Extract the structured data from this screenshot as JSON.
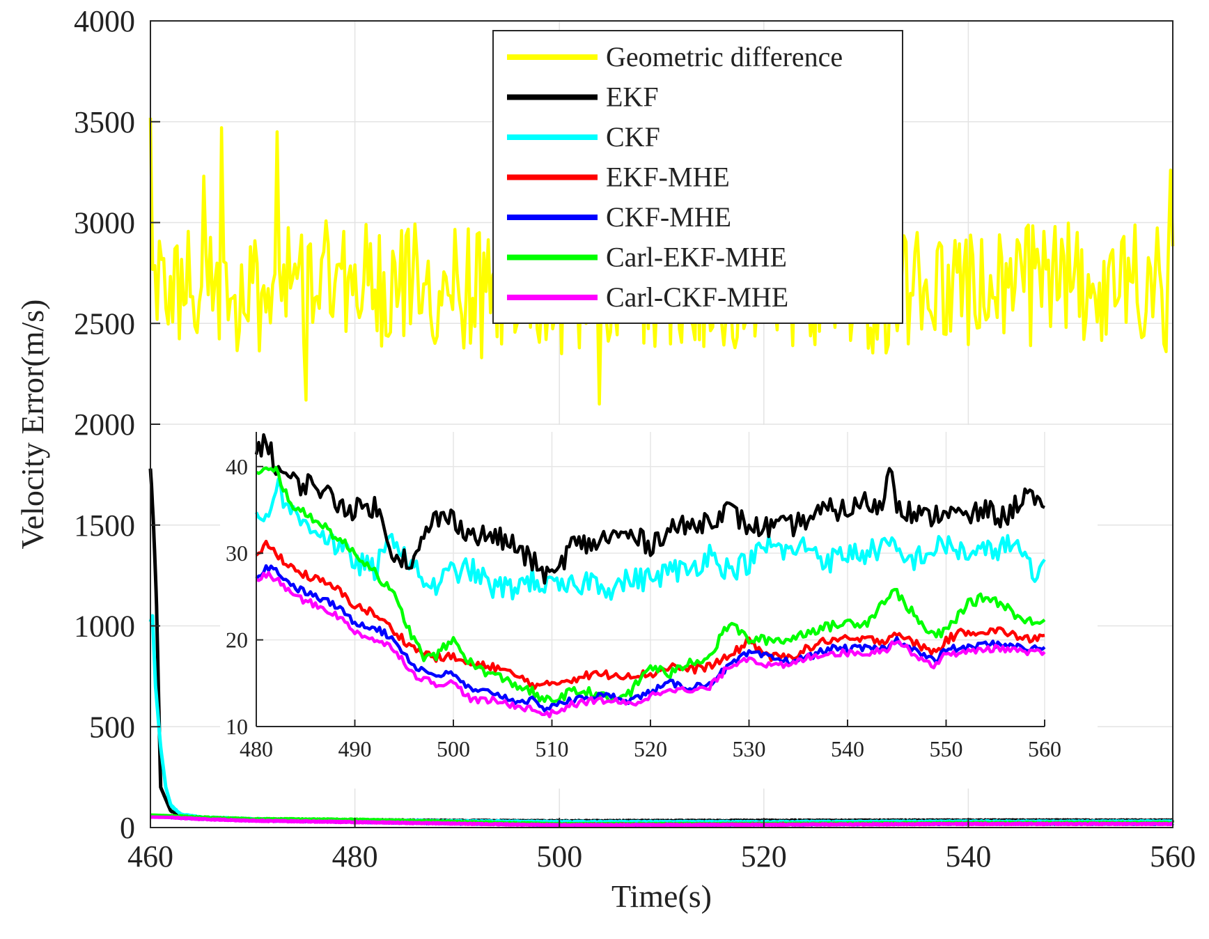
{
  "chart_data": [
    {
      "id": "main",
      "type": "line",
      "title": "",
      "xlabel": "Time(s)",
      "ylabel": "Velocity Error(m/s)",
      "xlim": [
        460,
        560
      ],
      "ylim": [
        0,
        4000
      ],
      "xticks": [
        460,
        480,
        500,
        520,
        540,
        560
      ],
      "yticks": [
        0,
        500,
        1000,
        1500,
        2000,
        2500,
        3000,
        3500,
        4000
      ],
      "grid": true,
      "legend_position": "top-center",
      "series": [
        {
          "name": "Geometric difference",
          "color": "#ffff00",
          "mean": 2680,
          "amplitude": 330,
          "peaks": [
            [
              460.1,
              3520
            ],
            [
              460.6,
              2520
            ],
            [
              465.2,
              3230
            ],
            [
              466.9,
              3470
            ],
            [
              472.5,
              3450
            ],
            [
              475.3,
              2120
            ],
            [
              492.5,
              2330
            ],
            [
              500.3,
              2350
            ],
            [
              503.9,
              2100
            ],
            [
              522.8,
              2390
            ],
            [
              527.0,
              2480
            ],
            [
              559.8,
              3260
            ],
            [
              559.4,
              2360
            ]
          ]
        },
        {
          "name": "EKF",
          "color": "#000000",
          "x": [
            460.0,
            460.1,
            460.3,
            460.5,
            460.6,
            461.0,
            462.0,
            464.0,
            470.0,
            480.0,
            500.0,
            520.0,
            540.0,
            560.0
          ],
          "y": [
            1780,
            1700,
            1500,
            1250,
            1100,
            200,
            80,
            50,
            40,
            36,
            32,
            34,
            35,
            35
          ]
        },
        {
          "name": "CKF",
          "color": "#00ffff",
          "x": [
            460.0,
            460.2,
            460.5,
            461.0,
            461.5,
            462.0,
            463.0,
            465.0,
            470.0,
            480.0,
            500.0,
            520.0,
            540.0,
            560.0
          ],
          "y": [
            1020,
            1050,
            700,
            400,
            200,
            110,
            65,
            50,
            42,
            35,
            28,
            28,
            30,
            30
          ]
        },
        {
          "name": "EKF-MHE",
          "color": "#ff0000",
          "x": [
            460,
            462,
            465,
            470,
            480,
            500,
            520,
            540,
            560
          ],
          "y": [
            55,
            52,
            45,
            38,
            30,
            16,
            18,
            20,
            21
          ]
        },
        {
          "name": "CKF-MHE",
          "color": "#0000ff",
          "x": [
            460,
            462,
            465,
            470,
            480,
            500,
            520,
            540,
            560
          ],
          "y": [
            55,
            52,
            44,
            36,
            28,
            13,
            15,
            19,
            19
          ]
        },
        {
          "name": "Carl-EKF-MHE",
          "color": "#00ff00",
          "x": [
            460,
            462,
            465,
            470,
            480,
            500,
            520,
            540,
            560
          ],
          "y": [
            62,
            58,
            50,
            42,
            39,
            17,
            18,
            23,
            23
          ]
        },
        {
          "name": "Carl-CKF-MHE",
          "color": "#ff00ff",
          "x": [
            460,
            462,
            465,
            470,
            480,
            500,
            520,
            540,
            560
          ],
          "y": [
            52,
            50,
            42,
            34,
            27,
            12,
            14,
            18,
            18
          ]
        }
      ]
    },
    {
      "id": "inset",
      "type": "line",
      "title": "",
      "xlim": [
        480,
        560
      ],
      "ylim": [
        10,
        44
      ],
      "xticks": [
        480,
        490,
        500,
        510,
        520,
        530,
        540,
        550,
        560
      ],
      "yticks": [
        10,
        20,
        30,
        40
      ],
      "grid": true,
      "series": [
        {
          "name": "EKF",
          "color": "#000000",
          "noise": 1.3,
          "x": [
            480,
            481,
            482,
            484,
            486,
            488,
            490,
            492,
            494,
            496,
            498,
            500,
            502,
            504,
            506,
            508,
            510,
            512,
            514,
            516,
            518,
            520,
            522,
            524,
            526,
            528,
            530,
            532,
            534,
            536,
            538,
            540,
            542,
            543.5,
            544.3,
            545,
            546,
            548,
            550,
            552,
            554,
            556,
            558,
            559,
            560
          ],
          "y": [
            42,
            43,
            40,
            38,
            38,
            36,
            35,
            35.5,
            30,
            29,
            34,
            34,
            32,
            32,
            31,
            29,
            27,
            31,
            31,
            32,
            32,
            31,
            33,
            33,
            34,
            35,
            33,
            33,
            33,
            34,
            35,
            35,
            36,
            35,
            41,
            36,
            35,
            34,
            35,
            34,
            35,
            34,
            37,
            36,
            34
          ]
        },
        {
          "name": "CKF",
          "color": "#00ffff",
          "noise": 1.4,
          "x": [
            480,
            481,
            482,
            484,
            486,
            488,
            490,
            492,
            494,
            496,
            498,
            500,
            502,
            504,
            506,
            508,
            510,
            512,
            514,
            516,
            518,
            520,
            522,
            524,
            526,
            528,
            530,
            532,
            534,
            536,
            538,
            540,
            542,
            544,
            546,
            548,
            550,
            552,
            554,
            556,
            558,
            559,
            560
          ],
          "y": [
            35,
            34,
            38,
            34,
            33,
            31,
            29,
            28,
            32,
            28,
            26,
            28,
            28,
            26,
            26,
            27,
            26,
            26,
            27,
            26,
            27,
            27,
            28,
            28,
            30,
            28,
            29,
            31,
            30,
            31,
            29,
            30,
            30,
            31,
            29,
            30,
            31,
            30,
            30,
            31,
            30,
            26,
            30
          ]
        },
        {
          "name": "EKF-MHE",
          "color": "#ff0000",
          "noise": 0.5,
          "x": [
            480,
            481,
            482,
            484,
            486,
            488,
            490,
            492,
            494,
            496,
            498,
            500,
            502,
            504,
            506,
            508,
            509,
            510,
            512,
            514,
            516,
            518,
            520,
            522,
            524,
            526,
            528,
            530,
            532,
            534,
            536,
            538,
            540,
            542,
            544,
            545,
            546,
            548,
            549,
            550,
            552,
            554,
            556,
            558,
            560
          ],
          "y": [
            30,
            31,
            30,
            28,
            27,
            26,
            24,
            23,
            21,
            19,
            18,
            18,
            17,
            17,
            16,
            15,
            14.5,
            15,
            15.5,
            16,
            16,
            16,
            16,
            17,
            16.5,
            17,
            18,
            20,
            18,
            18,
            19,
            20,
            20,
            20,
            20,
            21,
            20,
            19,
            18.5,
            20,
            21,
            21,
            21,
            20,
            20.5
          ]
        },
        {
          "name": "CKF-MHE",
          "color": "#0000ff",
          "noise": 0.4,
          "x": [
            480,
            481,
            482,
            484,
            486,
            488,
            490,
            492,
            494,
            496,
            498,
            500,
            502,
            504,
            506,
            508,
            509,
            510,
            512,
            514,
            516,
            518,
            520,
            522,
            524,
            526,
            528,
            530,
            532,
            534,
            536,
            538,
            540,
            542,
            544,
            545,
            546,
            548,
            549,
            550,
            552,
            554,
            556,
            558,
            560
          ],
          "y": [
            27,
            28.5,
            28,
            26,
            25,
            24,
            22,
            21.5,
            20,
            17,
            16,
            16,
            14,
            14,
            13,
            13,
            12,
            12.5,
            13,
            13.5,
            13.5,
            13,
            14,
            15,
            14.5,
            15,
            17,
            18.5,
            18,
            17.5,
            18,
            19,
            19,
            19,
            19,
            20,
            19.5,
            18,
            17.5,
            19,
            19,
            19.5,
            19.5,
            19,
            19
          ]
        },
        {
          "name": "Carl-EKF-MHE",
          "color": "#00ff00",
          "noise": 0.55,
          "x": [
            480,
            481,
            482,
            483,
            484,
            486,
            488,
            490,
            492,
            494,
            496,
            497,
            498,
            500,
            502,
            504,
            506,
            508,
            509,
            510,
            512,
            514,
            516,
            518,
            520,
            522,
            524,
            526,
            528,
            530,
            532,
            534,
            536,
            538,
            540,
            542,
            544,
            545,
            546,
            548,
            549,
            550,
            552,
            554,
            556,
            558,
            560
          ],
          "y": [
            39,
            39.5,
            39.5,
            37,
            35,
            34,
            32,
            30,
            28,
            25,
            20,
            18,
            18,
            20,
            17,
            16,
            15,
            14,
            13,
            13,
            14,
            14,
            13,
            14,
            17,
            16,
            17.5,
            18,
            22,
            20,
            20,
            20,
            21,
            21.5,
            22,
            22,
            25,
            25.5,
            24,
            21,
            20.5,
            21,
            24,
            25,
            24,
            22,
            22.5
          ]
        },
        {
          "name": "Carl-CKF-MHE",
          "color": "#ff00ff",
          "noise": 0.4,
          "x": [
            480,
            481,
            482,
            484,
            486,
            488,
            490,
            492,
            494,
            496,
            498,
            500,
            502,
            504,
            506,
            508,
            509,
            510,
            512,
            514,
            516,
            518,
            520,
            522,
            524,
            526,
            528,
            530,
            532,
            534,
            536,
            538,
            540,
            542,
            544,
            545,
            546,
            548,
            549,
            550,
            552,
            554,
            556,
            558,
            560
          ],
          "y": [
            27,
            27.5,
            27,
            25,
            24,
            23,
            21,
            20,
            19,
            16,
            15,
            15,
            13,
            13,
            12.5,
            12,
            11.5,
            11.5,
            12.5,
            13,
            13,
            12.5,
            13.5,
            14.5,
            14,
            14.5,
            17,
            18,
            17,
            17,
            18,
            18.5,
            18.5,
            18.5,
            19,
            20,
            19,
            17.5,
            17,
            18.5,
            18.5,
            19,
            19,
            18.5,
            18.5
          ]
        }
      ]
    }
  ],
  "legend": {
    "entries": [
      {
        "label": "Geometric difference",
        "color": "#ffff00",
        "icon": "legend-line-swatch"
      },
      {
        "label": "EKF",
        "color": "#000000",
        "icon": "legend-line-swatch"
      },
      {
        "label": "CKF",
        "color": "#00ffff",
        "icon": "legend-line-swatch"
      },
      {
        "label": "EKF-MHE",
        "color": "#ff0000",
        "icon": "legend-line-swatch"
      },
      {
        "label": "CKF-MHE",
        "color": "#0000ff",
        "icon": "legend-line-swatch"
      },
      {
        "label": "Carl-EKF-MHE",
        "color": "#00ff00",
        "icon": "legend-line-swatch"
      },
      {
        "label": "Carl-CKF-MHE",
        "color": "#ff00ff",
        "icon": "legend-line-swatch"
      }
    ]
  }
}
